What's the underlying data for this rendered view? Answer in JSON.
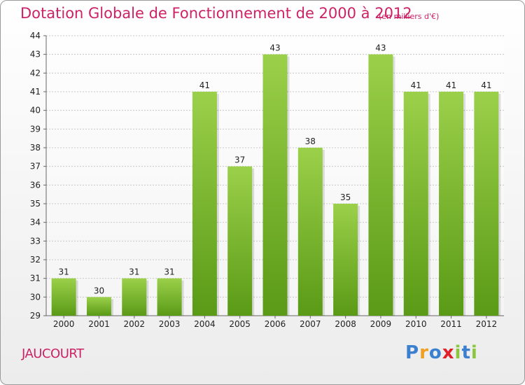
{
  "title": "Dotation Globale de Fonctionnement de 2000 à 2012",
  "subtitle": "(en milliers d'€)",
  "commune": "JAUCOURT",
  "logo": {
    "text": "Proxiti",
    "letters": [
      {
        "ch": "P",
        "color": "#3a7fd0"
      },
      {
        "ch": "r",
        "color": "#f0a020"
      },
      {
        "ch": "o",
        "color": "#3a7fd0"
      },
      {
        "ch": "x",
        "color": "#e0202a"
      },
      {
        "ch": "i",
        "color": "#8cc63f"
      },
      {
        "ch": "t",
        "color": "#3a7fd0"
      },
      {
        "ch": "i",
        "color": "#8cc63f"
      }
    ]
  },
  "colors": {
    "title": "#cc2266",
    "bar_top": "#9bd04a",
    "bar_bottom": "#5a9a16",
    "grid": "#c8c8c8",
    "axis_text": "#222222"
  },
  "chart_data": {
    "type": "bar",
    "categories": [
      "2000",
      "2001",
      "2002",
      "2003",
      "2004",
      "2005",
      "2006",
      "2007",
      "2008",
      "2009",
      "2010",
      "2011",
      "2012"
    ],
    "values": [
      31,
      30,
      31,
      31,
      41,
      37,
      43,
      38,
      35,
      43,
      41,
      41,
      41
    ],
    "ylim": [
      29,
      44
    ],
    "yticks": [
      29,
      30,
      31,
      32,
      33,
      34,
      35,
      36,
      37,
      38,
      39,
      40,
      41,
      42,
      43,
      44
    ],
    "grid": true,
    "data_labels": true
  }
}
